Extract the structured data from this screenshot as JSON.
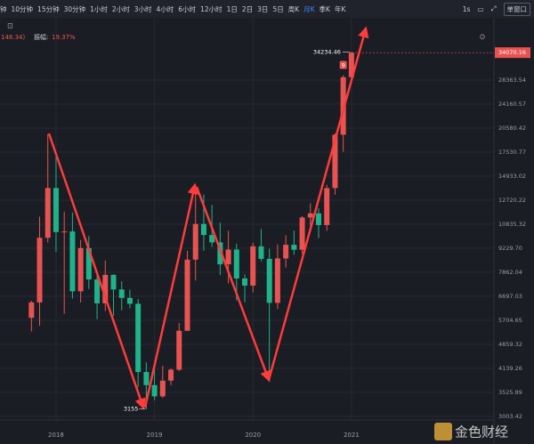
{
  "toolbar": {
    "intervals": [
      "钟",
      "10分钟",
      "15分钟",
      "30分钟",
      "1小时",
      "2小时",
      "3小时",
      "4小时",
      "6小时",
      "12小时",
      "1日",
      "2日",
      "3日",
      "5日",
      "周K",
      "月K",
      "季K",
      "年K"
    ],
    "active": "月K",
    "speed": "1s",
    "window": "单窗口"
  },
  "header": {
    "change": "148.34)",
    "amplitude_label": "振幅:",
    "amplitude": "19.37%",
    "badge": "9",
    "watermark": "金色财经"
  },
  "chart_data": {
    "type": "candlestick",
    "categories": [
      null,
      null,
      null,
      "2018",
      null,
      null,
      null,
      null,
      null,
      null,
      null,
      null,
      null,
      null,
      null,
      "2019",
      null,
      null,
      null,
      null,
      null,
      null,
      null,
      null,
      null,
      null,
      null,
      "2020",
      null,
      null,
      null,
      null,
      null,
      null,
      null,
      null,
      null,
      null,
      null,
      "2021"
    ],
    "open": [
      5800,
      6430,
      9900,
      13800,
      10285,
      10326,
      6923,
      9240,
      7494,
      6391,
      7730,
      7011,
      6626,
      6371,
      4041,
      3702,
      3434,
      3814,
      4103,
      5321,
      8555,
      10855,
      10085,
      9600,
      8293,
      9150,
      7546,
      7195,
      9352,
      8600,
      6410,
      8625,
      9448,
      9138,
      11335,
      11649,
      10777,
      13791,
      19695,
      28923
    ],
    "high": [
      6500,
      11400,
      19800,
      17200,
      11786,
      11710,
      9759,
      10020,
      7760,
      8507,
      7750,
      7410,
      7000,
      6580,
      4310,
      4140,
      4210,
      4140,
      5600,
      9074,
      13970,
      13203,
      12330,
      10950,
      10370,
      9510,
      7750,
      9578,
      10500,
      9188,
      9468,
      10067,
      10380,
      11444,
      12468,
      12050,
      14100,
      19863,
      29300,
      34234.46
    ],
    "low": [
      5300,
      5500,
      9600,
      9000,
      5960,
      6600,
      6425,
      7036,
      5750,
      6070,
      5880,
      6100,
      6180,
      3652,
      3155,
      3349,
      3400,
      3700,
      4067,
      5320,
      7440,
      9070,
      9320,
      7710,
      7300,
      6515,
      6430,
      6871,
      8450,
      3782,
      6150,
      8117,
      8834,
      8893,
      10525,
      9876,
      10370,
      13195,
      17572,
      28130
    ],
    "close": [
      6430,
      9900,
      13800,
      10285,
      10326,
      6923,
      9240,
      7494,
      6391,
      7730,
      7011,
      6626,
      6371,
      4041,
      3702,
      3434,
      3814,
      4103,
      5321,
      8555,
      10855,
      10085,
      9600,
      8293,
      9150,
      7546,
      7195,
      9352,
      8600,
      6410,
      8625,
      9448,
      9138,
      11335,
      11649,
      10777,
      13791,
      19695,
      28923,
      34070.16
    ],
    "up_color": "#e85352",
    "down_color": "#1fb38b",
    "log_scale": true,
    "grid": true,
    "ylim": [
      2968,
      39330
    ],
    "yticks": [
      28363.54,
      24160.57,
      20580.42,
      17530.77,
      14933.02,
      12720.22,
      10835.32,
      {
        "value": 9229.7,
        "label": "9229.70"
      },
      7862.04,
      6697.03,
      5704.65,
      4859.32,
      4139.26,
      3525.89,
      3003.42
    ]
  }
}
